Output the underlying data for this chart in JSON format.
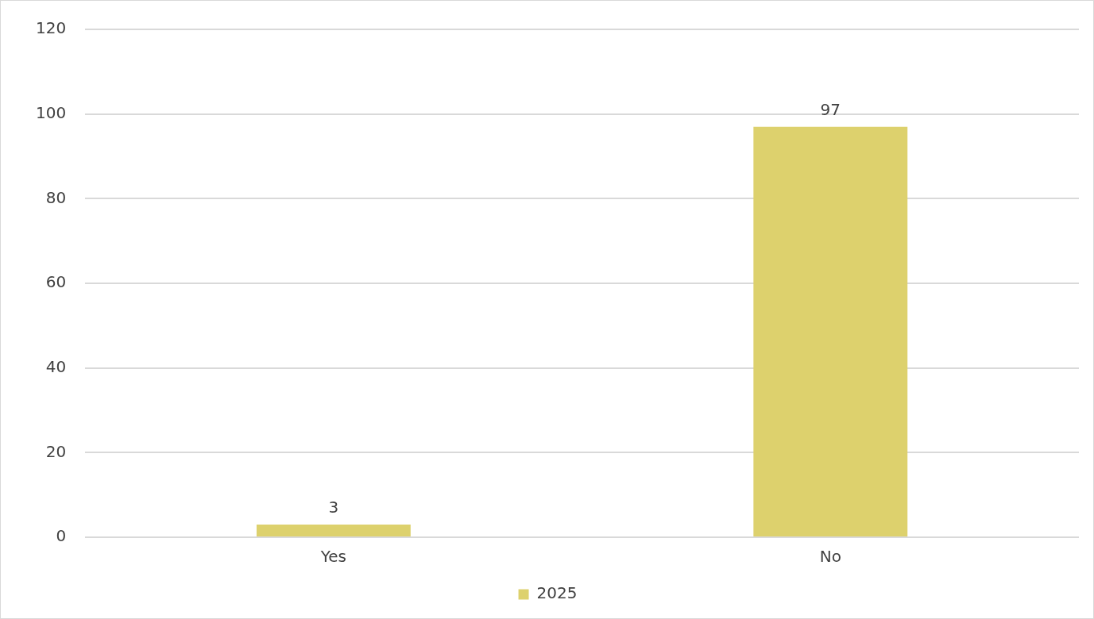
{
  "chart_data": {
    "type": "bar",
    "categories": [
      "Yes",
      "No"
    ],
    "series": [
      {
        "name": "2025",
        "color": "#ddd16d",
        "values": [
          3,
          97
        ]
      }
    ],
    "ylim": [
      0,
      120
    ],
    "yticks": [
      0,
      20,
      40,
      60,
      80,
      100,
      120
    ],
    "grid": "y",
    "legend": "bottom",
    "data_labels": true
  }
}
